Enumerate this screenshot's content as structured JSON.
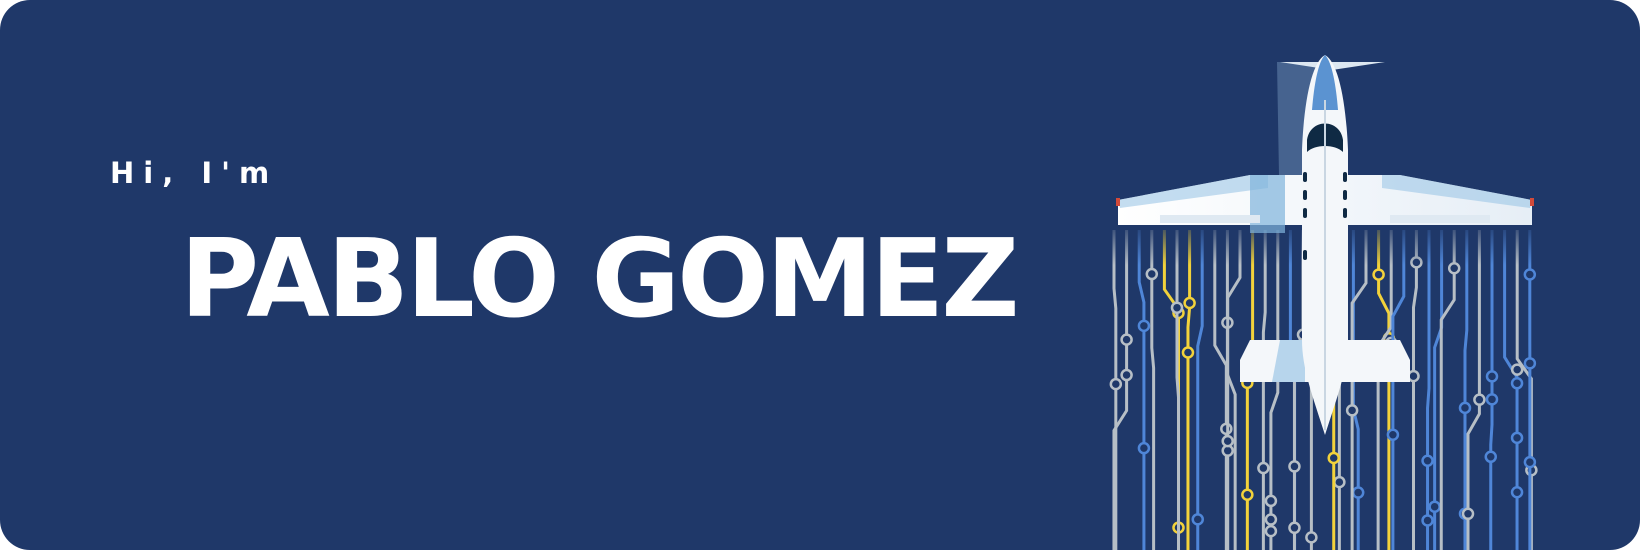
{
  "hero": {
    "greeting": "Hi, I'm",
    "name": "PABLO GOMEZ"
  },
  "illustration": {
    "icon": "airplane-over-circuit-icon",
    "colors": {
      "background": "#1f3869",
      "trace_gray": "#b7bfc6",
      "trace_blue": "#4f86d8",
      "trace_yellow": "#f2d23b",
      "plane_body": "#f4f7fa",
      "plane_accent": "#9cc6e6",
      "cockpit": "#0f2a44"
    }
  }
}
